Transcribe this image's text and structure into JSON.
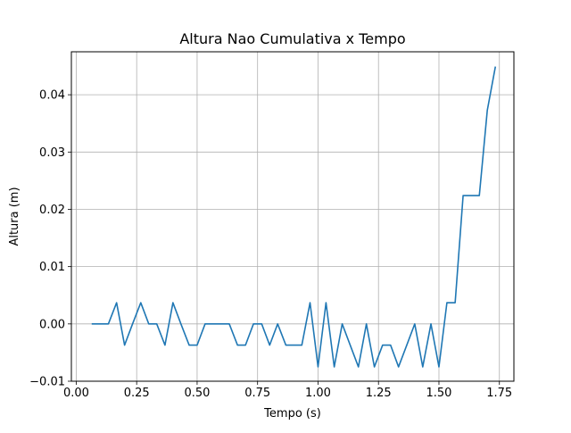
{
  "chart_data": {
    "type": "line",
    "title": "Altura Nao Cumulativa x Tempo",
    "xlabel": "Tempo (s)",
    "ylabel": "Altura (m)",
    "xlim": [
      -0.02,
      1.81
    ],
    "ylim": [
      -0.01,
      0.0475
    ],
    "xticks": [
      0.0,
      0.25,
      0.5,
      0.75,
      1.0,
      1.25,
      1.5,
      1.75
    ],
    "xtick_labels": [
      "0.00",
      "0.25",
      "0.50",
      "0.75",
      "1.00",
      "1.25",
      "1.50",
      "1.75"
    ],
    "yticks": [
      -0.01,
      0.0,
      0.01,
      0.02,
      0.03,
      0.04
    ],
    "ytick_labels": [
      "−0.01",
      "0.00",
      "0.01",
      "0.02",
      "0.03",
      "0.04"
    ],
    "grid": true,
    "series": [
      {
        "color": "#1f77b4",
        "x": [
          0.067,
          0.1,
          0.133,
          0.167,
          0.2,
          0.233,
          0.267,
          0.3,
          0.333,
          0.367,
          0.4,
          0.433,
          0.467,
          0.5,
          0.533,
          0.567,
          0.6,
          0.633,
          0.667,
          0.7,
          0.733,
          0.767,
          0.8,
          0.833,
          0.867,
          0.9,
          0.933,
          0.967,
          1.0,
          1.033,
          1.067,
          1.1,
          1.133,
          1.167,
          1.2,
          1.233,
          1.267,
          1.3,
          1.333,
          1.367,
          1.4,
          1.433,
          1.467,
          1.5,
          1.533,
          1.567,
          1.6,
          1.633,
          1.667,
          1.7,
          1.733
        ],
        "y": [
          0.0,
          0.0,
          0.0,
          0.0037,
          -0.0037,
          0.0,
          0.0037,
          0.0,
          0.0,
          -0.0037,
          0.0037,
          0.0,
          -0.0037,
          -0.0037,
          0.0,
          0.0,
          0.0,
          0.0,
          -0.0037,
          -0.0037,
          0.0,
          0.0,
          -0.0037,
          0.0,
          -0.0037,
          -0.0037,
          -0.0037,
          0.0037,
          -0.0075,
          0.0037,
          -0.0075,
          0.0,
          -0.0037,
          -0.0075,
          0.0,
          -0.0075,
          -0.0037,
          -0.0037,
          -0.0075,
          -0.0037,
          0.0,
          -0.0075,
          0.0,
          -0.0075,
          0.0037,
          0.0037,
          0.0224,
          0.0224,
          0.0224,
          0.0373,
          0.0448
        ]
      }
    ]
  }
}
